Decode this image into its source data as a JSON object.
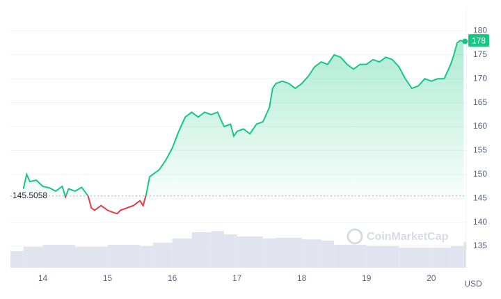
{
  "chart_data": {
    "type": "line",
    "x": [
      13.7,
      13.75,
      13.8,
      13.9,
      14.0,
      14.1,
      14.2,
      14.3,
      14.35,
      14.4,
      14.5,
      14.6,
      14.7,
      14.75,
      14.8,
      14.9,
      15.0,
      15.1,
      15.15,
      15.2,
      15.3,
      15.4,
      15.5,
      15.55,
      15.6,
      15.65,
      15.7,
      15.8,
      15.9,
      16.0,
      16.1,
      16.2,
      16.3,
      16.4,
      16.5,
      16.6,
      16.7,
      16.8,
      16.9,
      16.95,
      17.0,
      17.1,
      17.2,
      17.3,
      17.4,
      17.5,
      17.55,
      17.6,
      17.7,
      17.8,
      17.9,
      18.0,
      18.1,
      18.2,
      18.3,
      18.4,
      18.5,
      18.6,
      18.7,
      18.8,
      18.9,
      19.0,
      19.1,
      19.2,
      19.3,
      19.4,
      19.5,
      19.6,
      19.7,
      19.8,
      19.9,
      20.0,
      20.1,
      20.2,
      20.3,
      20.35,
      20.4,
      20.45,
      20.5
    ],
    "series": [
      {
        "values": [
          147,
          150,
          148.5,
          148.8,
          147.5,
          147.2,
          146.5,
          147.5,
          145.3,
          147,
          146.5,
          147.3,
          145.5,
          143,
          142.5,
          143.5,
          142.5,
          142,
          141.8,
          142.5,
          143,
          143.5,
          144.5,
          143.5,
          146,
          149.5,
          150,
          151,
          153,
          155.5,
          159,
          162,
          163,
          162,
          163,
          162.5,
          163,
          160,
          160.5,
          158,
          159,
          159.5,
          158.5,
          160.5,
          161,
          164,
          168,
          169,
          169.5,
          169,
          168,
          169,
          170.5,
          172.5,
          173.5,
          173,
          175,
          174.5,
          173,
          172,
          173,
          173,
          174,
          173.5,
          174.5,
          174,
          172.5,
          170,
          168,
          168.5,
          170,
          169.5,
          170,
          170,
          173,
          175,
          177.5,
          178,
          177.8
        ],
        "color": "#16c784",
        "color_below": "#ea3943"
      }
    ],
    "reference_line": 145.5058,
    "last_price": 178,
    "volume": {
      "x": [
        13.5,
        13.7,
        14.0,
        14.5,
        15.0,
        15.5,
        15.7,
        16.0,
        16.3,
        16.6,
        16.8,
        17.0,
        17.4,
        17.6,
        18.0,
        18.3,
        18.5,
        19.0,
        19.5,
        20.0,
        20.3,
        20.5
      ],
      "values": [
        40,
        50,
        55,
        50,
        55,
        52,
        60,
        70,
        85,
        88,
        80,
        75,
        70,
        72,
        68,
        65,
        55,
        52,
        48,
        48,
        52,
        62
      ],
      "lim": [
        0,
        100
      ],
      "color": "#e1e4ef"
    },
    "xlim": [
      13.5,
      20.54
    ],
    "ylim": [
      130.5,
      185
    ],
    "xticks": [
      14,
      15,
      16,
      17,
      18,
      19,
      20
    ],
    "yticks": [
      135,
      140,
      145,
      150,
      155,
      160,
      165,
      170,
      175,
      180
    ],
    "grid": true,
    "y_axis_label": "USD",
    "watermark": "CoinMarketCap"
  }
}
